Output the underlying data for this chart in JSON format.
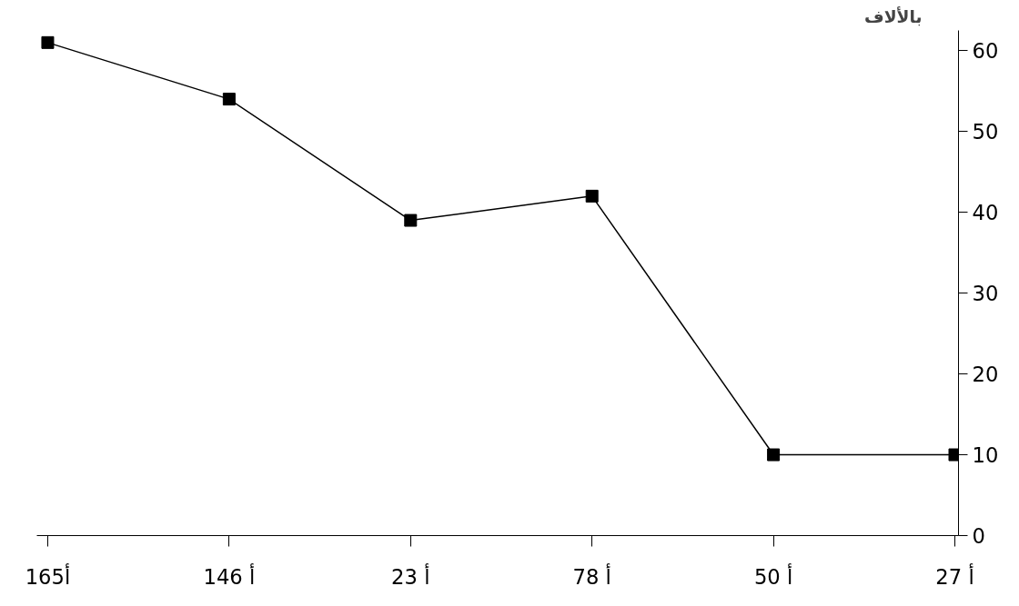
{
  "chart_data": {
    "type": "line",
    "ylabel": "بالألاف",
    "categories": [
      "أ165",
      "أ 146",
      "أ 23",
      "أ 78",
      "أ 50",
      "أ 27"
    ],
    "series": [
      {
        "color": "#000000",
        "values": [
          61,
          54,
          39,
          42,
          10,
          10
        ]
      }
    ],
    "ylim": [
      0,
      62.5
    ],
    "yticks": [
      0,
      10,
      20,
      30,
      40,
      50,
      60
    ],
    "marker": "square",
    "line_style": "solid",
    "grid": false
  }
}
